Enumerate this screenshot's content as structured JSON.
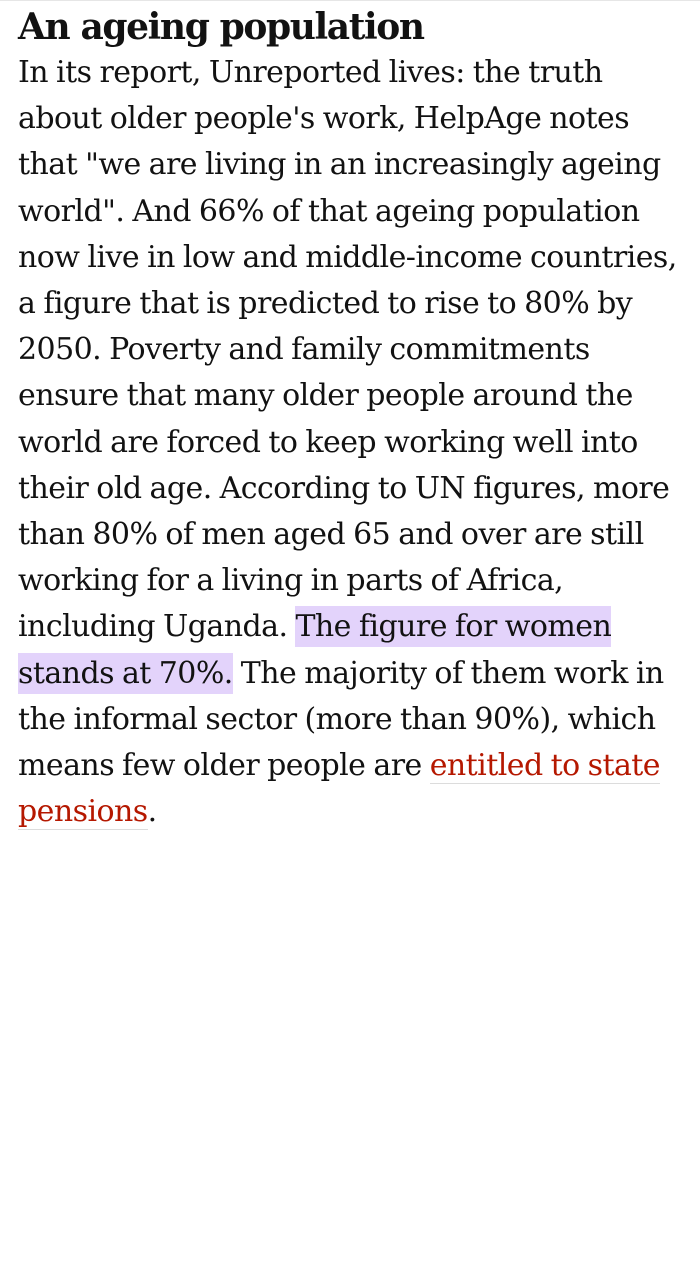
{
  "article": {
    "heading": "An ageing population",
    "paragraph": {
      "text_before": "In its report, Unreported lives: the truth about older people's work, HelpAge notes that \"we are living in an increasingly ageing world\". And 66% of that ageing population now live in low and middle-income countries, a figure that is predicted to rise to 80% by 2050. Poverty and family commitments ensure that many older people around the world are forced to keep working well into their old age. According to UN figures, more than 80% of men aged 65 and over are still working for a living in parts of Africa, including Uganda. ",
      "highlighted": "The figure for women stands at 70%.",
      "text_middle": " The majority of them work in the informal sector (more than 90%), which means few older people are ",
      "link_text": "entitled to state pensions",
      "text_end": "."
    }
  },
  "colors": {
    "text": "#121212",
    "highlight": "#e3d3fb",
    "link": "#b51800"
  }
}
